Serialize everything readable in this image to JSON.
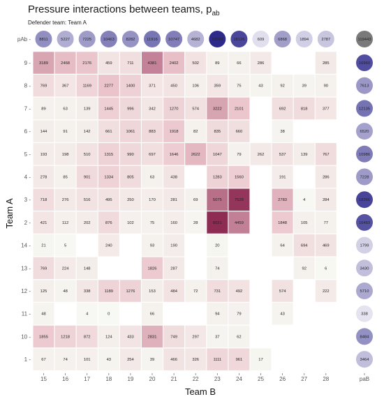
{
  "chart_data": {
    "type": "heatmap",
    "title": "Pressure interactions between teams, p",
    "title_subscript": "ab",
    "subtitle": "Defender team:  Team A",
    "xlabel": "Team B",
    "ylabel": "Team A",
    "x_categories": [
      "15",
      "16",
      "17",
      "18",
      "19",
      "20",
      "21",
      "22",
      "23",
      "24",
      "25",
      "26",
      "27",
      "28"
    ],
    "y_categories": [
      "9",
      "8",
      "7",
      "6",
      "5",
      "4",
      "3",
      "2",
      "14",
      "13",
      "12",
      "11",
      "10",
      "1"
    ],
    "values": [
      [
        3189,
        2468,
        2176,
        459,
        711,
        4381,
        2402,
        502,
        89,
        66,
        286,
        null,
        null,
        285
      ],
      [
        769,
        367,
        1169,
        2277,
        1400,
        371,
        450,
        106,
        359,
        75,
        43,
        92,
        39,
        90
      ],
      [
        89,
        63,
        139,
        1445,
        996,
        342,
        1270,
        574,
        3222,
        2101,
        null,
        692,
        818,
        377
      ],
      [
        144,
        91,
        142,
        661,
        1061,
        883,
        1918,
        82,
        835,
        660,
        null,
        38,
        null,
        null
      ],
      [
        193,
        198,
        510,
        1315,
        990,
        697,
        1646,
        2622,
        1047,
        79,
        262,
        537,
        139,
        767
      ],
      [
        278,
        85,
        901,
        1334,
        805,
        63,
        438,
        null,
        1283,
        1560,
        null,
        191,
        null,
        286
      ],
      [
        718,
        276,
        516,
        495,
        250,
        170,
        281,
        69,
        5075,
        7528,
        null,
        2783,
        4,
        284
      ],
      [
        421,
        112,
        202,
        876,
        102,
        75,
        160,
        28,
        8021,
        4459,
        null,
        1848,
        105,
        77
      ],
      [
        21,
        5,
        null,
        240,
        null,
        93,
        190,
        null,
        20,
        null,
        null,
        64,
        694,
        469
      ],
      [
        769,
        224,
        148,
        null,
        null,
        1826,
        287,
        null,
        74,
        null,
        null,
        null,
        92,
        6
      ],
      [
        125,
        48,
        338,
        1189,
        1276,
        153,
        484,
        72,
        731,
        492,
        null,
        574,
        null,
        222
      ],
      [
        48,
        null,
        4,
        0,
        null,
        66,
        null,
        null,
        94,
        79,
        null,
        43,
        null,
        null
      ],
      [
        1855,
        1218,
        872,
        124,
        433,
        2831,
        749,
        297,
        37,
        62,
        null,
        null,
        null,
        null
      ],
      [
        67,
        74,
        101,
        43,
        254,
        39,
        466,
        326,
        1111,
        961,
        17,
        null,
        null,
        null
      ]
    ],
    "row_totals_label": "paB",
    "row_totals": [
      16960,
      7613,
      12135,
      6520,
      10986,
      7228,
      18366,
      16483,
      1799,
      3430,
      5710,
      338,
      8484,
      3464
    ],
    "col_totals_label": "pAb",
    "col_totals": [
      8811,
      5227,
      7225,
      10463,
      8282,
      11916,
      10747,
      4682,
      22024,
      18126,
      609,
      6868,
      1894,
      2787
    ],
    "grand_total": 119443,
    "colors": {
      "cell_low": "#f7faf4",
      "cell_mid": "#ebc4cb",
      "cell_high": "#8e2c53",
      "bubble_low": "#eceaf3",
      "bubble_high": "#2e2a8c",
      "grand_total": "#7a7a7a"
    },
    "grid": false,
    "legend": "none"
  }
}
